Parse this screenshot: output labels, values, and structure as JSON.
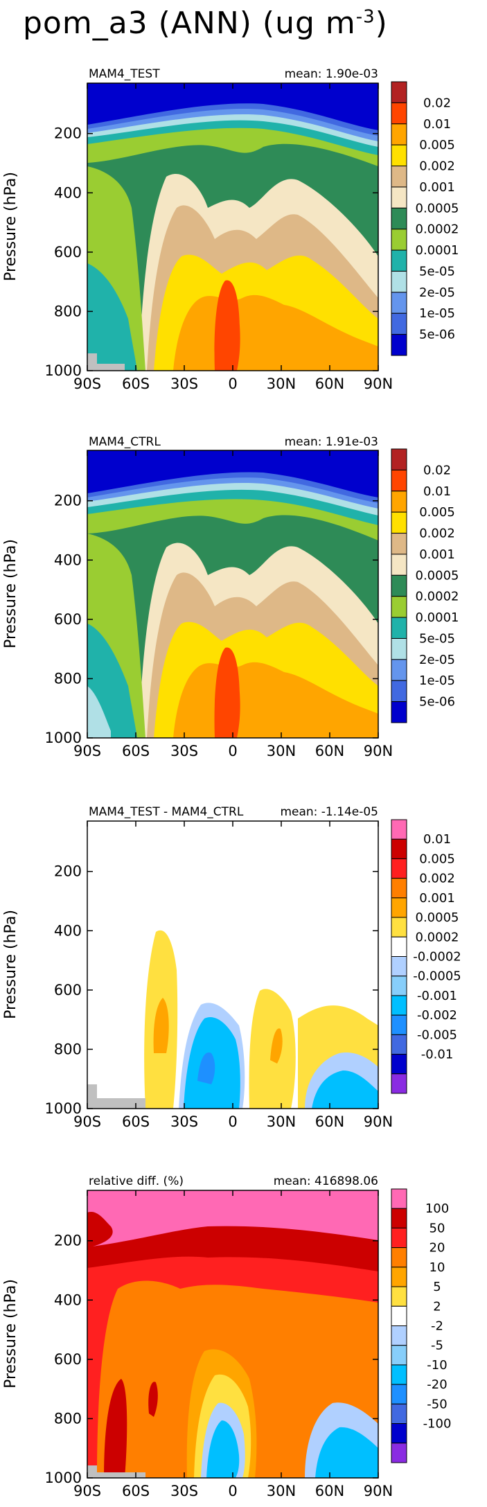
{
  "figure": {
    "title_main": "pom_a3 (ANN) (ug m",
    "title_sup": "-3",
    "title_end": ")"
  },
  "chart_data": [
    {
      "type": "heatmap",
      "panel_label": "MAM4_TEST",
      "mean_label": "mean: 1.90e-03",
      "xlabel": "",
      "ylabel": "Pressure (hPa)",
      "x_ticks": [
        "90S",
        "60S",
        "30S",
        "0",
        "30N",
        "60N",
        "90N"
      ],
      "y_ticks": [
        "200",
        "400",
        "600",
        "800",
        "1000"
      ],
      "xlim": [
        -90,
        90
      ],
      "ylim": [
        1000,
        30
      ],
      "colorbar_labels": [
        "0.02",
        "0.01",
        "0.005",
        "0.002",
        "0.001",
        "0.0005",
        "0.0002",
        "0.0001",
        "5e-05",
        "2e-05",
        "1e-05",
        "5e-06"
      ],
      "colorbar_colors": [
        "#b22222",
        "#ff4500",
        "#ffa500",
        "#ffe000",
        "#deb887",
        "#f5e6c4",
        "#2e8b57",
        "#9acd32",
        "#20b2aa",
        "#b0e0e6",
        "#6495ed",
        "#4169e1",
        "#0000cd"
      ],
      "grid": false
    },
    {
      "type": "heatmap",
      "panel_label": "MAM4_CTRL",
      "mean_label": "mean: 1.91e-03",
      "xlabel": "",
      "ylabel": "Pressure (hPa)",
      "x_ticks": [
        "90S",
        "60S",
        "30S",
        "0",
        "30N",
        "60N",
        "90N"
      ],
      "y_ticks": [
        "200",
        "400",
        "600",
        "800",
        "1000"
      ],
      "xlim": [
        -90,
        90
      ],
      "ylim": [
        1000,
        30
      ],
      "colorbar_labels": [
        "0.02",
        "0.01",
        "0.005",
        "0.002",
        "0.001",
        "0.0005",
        "0.0002",
        "0.0001",
        "5e-05",
        "2e-05",
        "1e-05",
        "5e-06"
      ],
      "colorbar_colors": [
        "#b22222",
        "#ff4500",
        "#ffa500",
        "#ffe000",
        "#deb887",
        "#f5e6c4",
        "#2e8b57",
        "#9acd32",
        "#20b2aa",
        "#b0e0e6",
        "#6495ed",
        "#4169e1",
        "#0000cd"
      ],
      "grid": false
    },
    {
      "type": "heatmap",
      "panel_label": "MAM4_TEST - MAM4_CTRL",
      "mean_label": "mean: -1.14e-05",
      "xlabel": "",
      "ylabel": "Pressure (hPa)",
      "x_ticks": [
        "90S",
        "60S",
        "30S",
        "0",
        "30N",
        "60N",
        "90N"
      ],
      "y_ticks": [
        "200",
        "400",
        "600",
        "800",
        "1000"
      ],
      "xlim": [
        -90,
        90
      ],
      "ylim": [
        1000,
        30
      ],
      "colorbar_labels": [
        "0.01",
        "0.005",
        "0.002",
        "0.001",
        "0.0005",
        "0.0002",
        "-0.0002",
        "-0.0005",
        "-0.001",
        "-0.002",
        "-0.005",
        "-0.01"
      ],
      "colorbar_colors": [
        "#ff69b4",
        "#cc0000",
        "#ff2020",
        "#ff7f00",
        "#ffa500",
        "#ffe040",
        "#ffffff",
        "#b0d0ff",
        "#87cefa",
        "#00bfff",
        "#1e90ff",
        "#4169e1",
        "#0000cd",
        "#8a2be2"
      ],
      "grid": false
    },
    {
      "type": "heatmap",
      "panel_label": "relative diff. (%)",
      "mean_label": "mean: 416898.06",
      "xlabel": "",
      "ylabel": "Pressure (hPa)",
      "x_ticks": [
        "90S",
        "60S",
        "30S",
        "0",
        "30N",
        "60N",
        "90N"
      ],
      "y_ticks": [
        "200",
        "400",
        "600",
        "800",
        "1000"
      ],
      "xlim": [
        -90,
        90
      ],
      "ylim": [
        1000,
        30
      ],
      "colorbar_labels": [
        "100",
        "50",
        "20",
        "10",
        "5",
        "2",
        "-2",
        "-5",
        "-10",
        "-20",
        "-50",
        "-100"
      ],
      "colorbar_colors": [
        "#ff69b4",
        "#cc0000",
        "#ff2020",
        "#ff7f00",
        "#ffa500",
        "#ffe040",
        "#ffffff",
        "#b0d0ff",
        "#87cefa",
        "#00bfff",
        "#1e90ff",
        "#4169e1",
        "#0000cd",
        "#8a2be2"
      ],
      "grid": false
    }
  ]
}
